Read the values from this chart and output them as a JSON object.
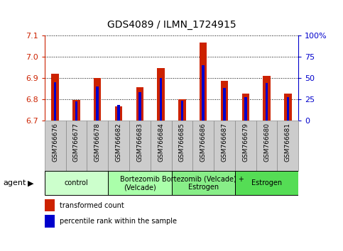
{
  "title": "GDS4089 / ILMN_1724915",
  "samples": [
    "GSM766676",
    "GSM766677",
    "GSM766678",
    "GSM766682",
    "GSM766683",
    "GSM766684",
    "GSM766685",
    "GSM766686",
    "GSM766687",
    "GSM766679",
    "GSM766680",
    "GSM766681"
  ],
  "red_values": [
    6.92,
    6.795,
    6.9,
    6.765,
    6.855,
    6.945,
    6.8,
    7.065,
    6.885,
    6.825,
    6.91,
    6.825
  ],
  "blue_values_pct": [
    45,
    22,
    40,
    18,
    33,
    50,
    23,
    65,
    38,
    27,
    44,
    27
  ],
  "y_min": 6.7,
  "y_max": 7.1,
  "y_ticks": [
    6.7,
    6.8,
    6.9,
    7.0,
    7.1
  ],
  "y2_ticks": [
    0,
    25,
    50,
    75,
    100
  ],
  "y2_tick_labels": [
    "0",
    "25",
    "50",
    "75",
    "100%"
  ],
  "groups": [
    {
      "label": "control",
      "start": 0,
      "end": 3,
      "color": "#ccffcc"
    },
    {
      "label": "Bortezomib\n(Velcade)",
      "start": 3,
      "end": 6,
      "color": "#aaffaa"
    },
    {
      "label": "Bortezomib (Velcade) +\nEstrogen",
      "start": 6,
      "end": 9,
      "color": "#88ee88"
    },
    {
      "label": "Estrogen",
      "start": 9,
      "end": 12,
      "color": "#55dd55"
    }
  ],
  "bar_width": 0.35,
  "blue_bar_width": 0.12,
  "red_color": "#cc2200",
  "blue_color": "#0000cc",
  "grid_color": "#000000",
  "bg_color": "#ffffff",
  "agent_label": "agent",
  "legend_red": "transformed count",
  "legend_blue": "percentile rank within the sample",
  "xlabel_bg": "#cccccc",
  "xlabel_edge": "#888888"
}
